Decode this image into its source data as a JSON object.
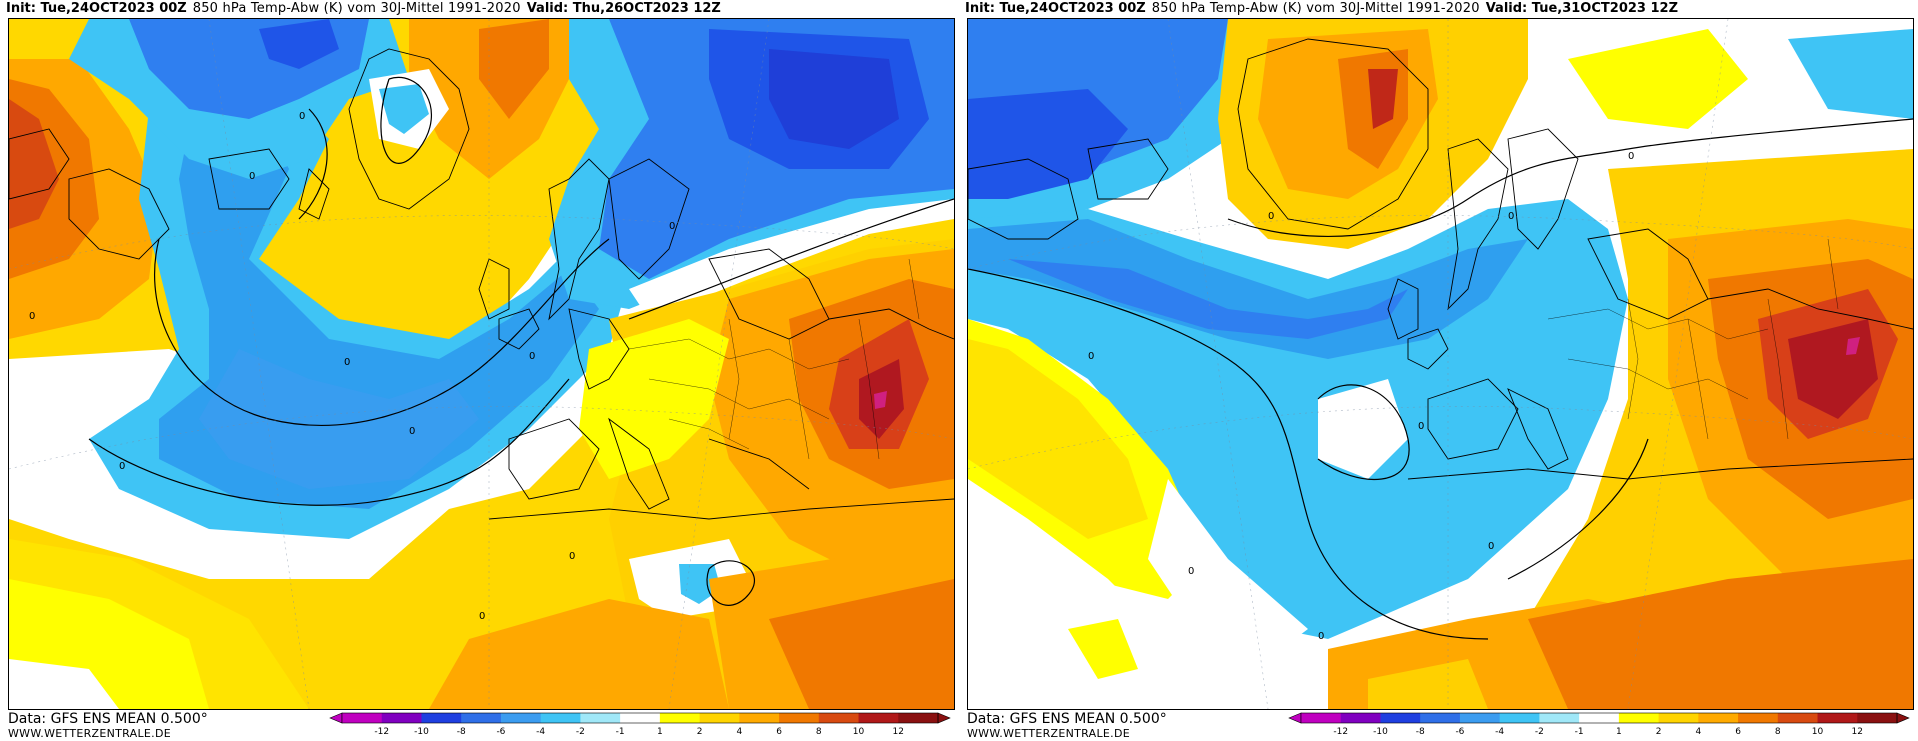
{
  "panels": [
    {
      "init": "Init: Tue,24OCT2023 00Z",
      "title": "850 hPa Temp-Abw (K) vom 30J-Mittel 1991-2020",
      "valid": "Valid: Thu,26OCT2023 12Z",
      "data_source": "Data: GFS ENS MEAN 0.500°",
      "website": "WWW.WETTERZENTRALE.DE",
      "contour_labels": [
        "0",
        "0",
        "0",
        "0",
        "0",
        "0",
        "0",
        "0",
        "0",
        "0"
      ]
    },
    {
      "init": "Init: Tue,24OCT2023 00Z",
      "title": "850 hPa Temp-Abw (K) vom 30J-Mittel 1991-2020",
      "valid": "Valid: Tue,31OCT2023 12Z",
      "data_source": "Data: GFS ENS MEAN 0.500°",
      "website": "WWW.WETTERZENTRALE.DE",
      "contour_labels": [
        "0",
        "0",
        "0",
        "0",
        "0",
        "0",
        "0",
        "0"
      ]
    }
  ],
  "colorbar": {
    "labels": [
      "-12",
      "-10",
      "-8",
      "-6",
      "-4",
      "-2",
      "-1",
      "1",
      "2",
      "4",
      "6",
      "8",
      "10",
      "12"
    ],
    "colors": [
      "#c000c0",
      "#8000c0",
      "#1f3fe0",
      "#2f6fe8",
      "#3b9cf0",
      "#3fc4f5",
      "#a0e8f8",
      "#ffffff",
      "#ffff00",
      "#ffd400",
      "#ffaa00",
      "#f07800",
      "#d84a10",
      "#b01818",
      "#8a1010"
    ],
    "units": "K"
  },
  "palette": {
    "deep_blue": "#1f3fe0",
    "blue": "#2f7ff0",
    "light_blue": "#3cb4f5",
    "cyan": "#4fd8f8",
    "yellow": "#ffff00",
    "gold": "#ffd000",
    "orange": "#ffa800",
    "dark_orange": "#f07800",
    "red": "#d84018",
    "dark_red": "#b01820",
    "magenta": "#d02080"
  }
}
